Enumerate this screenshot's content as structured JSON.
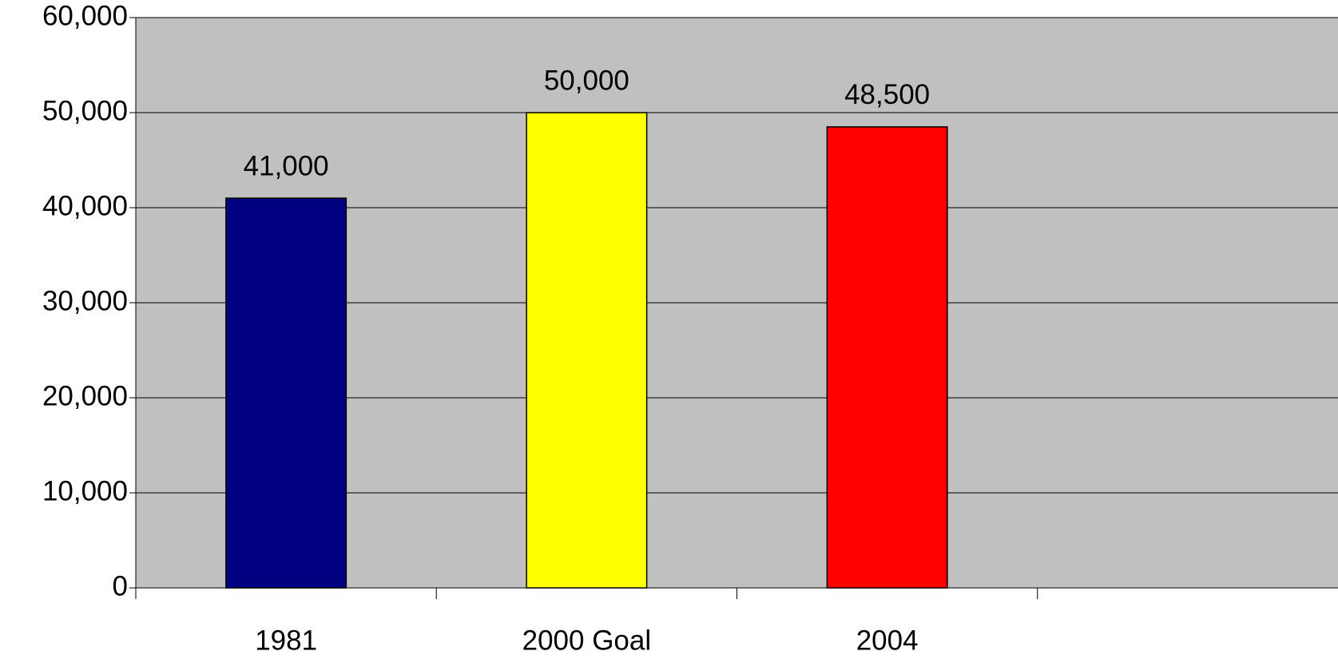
{
  "chart_data": {
    "type": "bar",
    "categories": [
      "1981",
      "2000 Goal",
      "2004",
      null
    ],
    "values": [
      41000,
      50000,
      48500,
      null
    ],
    "value_labels": [
      "41,000",
      "50,000",
      "48,500",
      null
    ],
    "colors": [
      "#000080",
      "#ffff00",
      "#ff0000",
      null
    ],
    "ylim": [
      0,
      60000
    ],
    "yticks": [
      0,
      {
        "value": 10000,
        "label": "10,000"
      },
      {
        "value": 20000,
        "label": "20,000"
      },
      {
        "value": 30000,
        "label": "30,000"
      },
      {
        "value": 40000,
        "label": "40,000"
      },
      {
        "value": 50000,
        "label": "50,000"
      },
      {
        "value": 60000,
        "label": "60,000"
      }
    ],
    "grid": true
  }
}
